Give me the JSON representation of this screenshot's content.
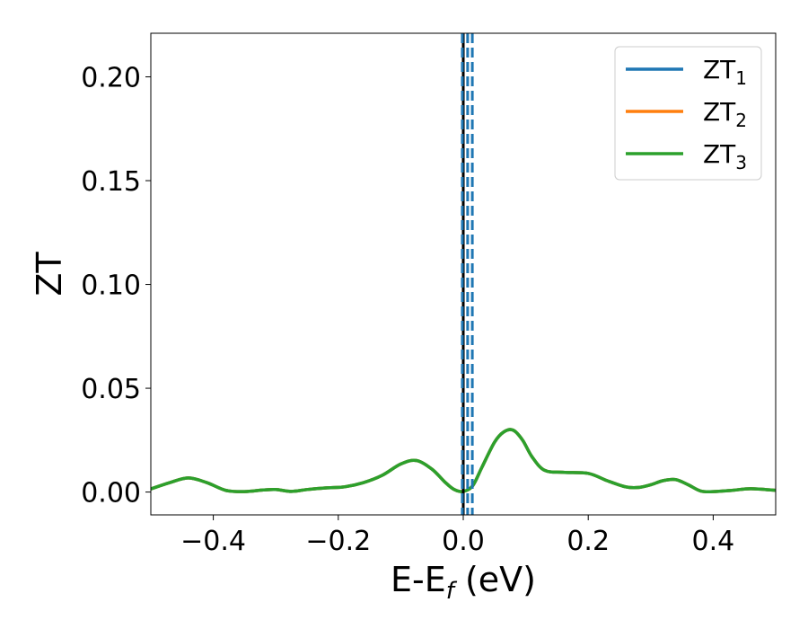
{
  "chart_data": {
    "type": "line",
    "xlabel": "E-E",
    "xlabel_sub": "f",
    "xlabel_unit": " (eV)",
    "ylabel": "ZT",
    "xlim": [
      -0.5,
      0.5
    ],
    "ylim": [
      -0.011,
      0.221
    ],
    "xticks": [
      -0.4,
      -0.2,
      0.0,
      0.2,
      0.4
    ],
    "xtick_labels": [
      "−0.4",
      "−0.2",
      "0.0",
      "0.2",
      "0.4"
    ],
    "yticks": [
      0.0,
      0.05,
      0.1,
      0.15,
      0.2
    ],
    "ytick_labels": [
      "0.00",
      "0.05",
      "0.10",
      "0.15",
      "0.20"
    ],
    "grid": false,
    "legend_position": "top-right",
    "colors": {
      "ZT1": "#1f77b4",
      "ZT2": "#ff7f0e",
      "ZT3": "#2ca02c",
      "fermi": "#000000"
    },
    "series": [
      {
        "name": "ZT",
        "name_sub": "1",
        "color": "#1f77b4",
        "same_as": "ZT3"
      },
      {
        "name": "ZT",
        "name_sub": "2",
        "color": "#ff7f0e",
        "same_as": "ZT3"
      },
      {
        "name": "ZT",
        "name_sub": "3",
        "color": "#2ca02c",
        "x": [
          -0.5,
          -0.47,
          -0.44,
          -0.41,
          -0.38,
          -0.35,
          -0.32,
          -0.3,
          -0.275,
          -0.25,
          -0.22,
          -0.19,
          -0.16,
          -0.13,
          -0.1,
          -0.075,
          -0.05,
          -0.03,
          -0.015,
          0.0,
          0.015,
          0.03,
          0.05,
          0.065,
          0.08,
          0.095,
          0.11,
          0.13,
          0.16,
          0.2,
          0.23,
          0.26,
          0.28,
          0.3,
          0.32,
          0.34,
          0.36,
          0.38,
          0.4,
          0.43,
          0.46,
          0.5
        ],
        "y": [
          0.0015,
          0.0045,
          0.0068,
          0.0045,
          0.0008,
          0.0002,
          0.001,
          0.0012,
          0.0003,
          0.0012,
          0.002,
          0.0025,
          0.0045,
          0.008,
          0.0135,
          0.0152,
          0.011,
          0.005,
          0.0013,
          0.0003,
          0.003,
          0.012,
          0.024,
          0.029,
          0.0298,
          0.025,
          0.017,
          0.0105,
          0.0095,
          0.009,
          0.0055,
          0.0025,
          0.0022,
          0.0035,
          0.0055,
          0.006,
          0.0035,
          0.0005,
          0.0002,
          0.0008,
          0.0016,
          0.0008
        ]
      }
    ],
    "vlines": [
      {
        "x": 0.0,
        "color": "#000000",
        "style": "solid"
      },
      {
        "x": -0.0015,
        "color": "#1f77b4",
        "style": "dashed"
      },
      {
        "x": 0.007,
        "color": "#1f77b4",
        "style": "dashed"
      },
      {
        "x": 0.0145,
        "color": "#1f77b4",
        "style": "dashed"
      }
    ]
  }
}
